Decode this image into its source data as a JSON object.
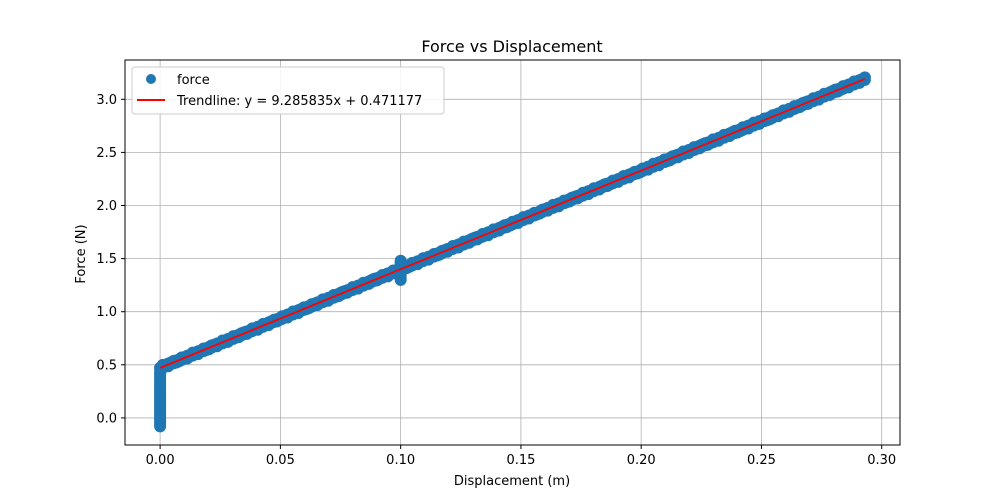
{
  "chart_data": {
    "type": "scatter",
    "title": "Force vs Displacement",
    "xlabel": "Displacement (m)",
    "ylabel": "Force (N)",
    "xlim": [
      -0.0146,
      0.3076
    ],
    "ylim": [
      -0.255,
      3.37
    ],
    "xticks": [
      0.0,
      0.05,
      0.1,
      0.15,
      0.2,
      0.25,
      0.3
    ],
    "xtick_labels": [
      "0.00",
      "0.05",
      "0.10",
      "0.15",
      "0.20",
      "0.25",
      "0.30"
    ],
    "yticks": [
      0.0,
      0.5,
      1.0,
      1.5,
      2.0,
      2.5,
      3.0
    ],
    "ytick_labels": [
      "0.0",
      "0.5",
      "1.0",
      "1.5",
      "2.0",
      "2.5",
      "3.0"
    ],
    "grid": true,
    "legend_position": "top-left",
    "series": [
      {
        "name": "force",
        "kind": "scatter",
        "color": "#1f77b4",
        "segments": [
          {
            "x": 0.0,
            "y_from": -0.08,
            "y_to": 0.46
          },
          {
            "x_from": 0.0,
            "x_to": 0.293,
            "slope": 9.285835,
            "intercept": 0.471177,
            "scatter_half_width": 0.035
          },
          {
            "x": 0.1,
            "y_from": 1.3,
            "y_to": 1.5
          }
        ]
      },
      {
        "name": "Trendline: y = 9.285835x + 0.471177",
        "kind": "line",
        "color": "#ff0000",
        "x": [
          0.0,
          0.293
        ],
        "y": [
          0.471177,
          3.192
        ]
      }
    ]
  }
}
